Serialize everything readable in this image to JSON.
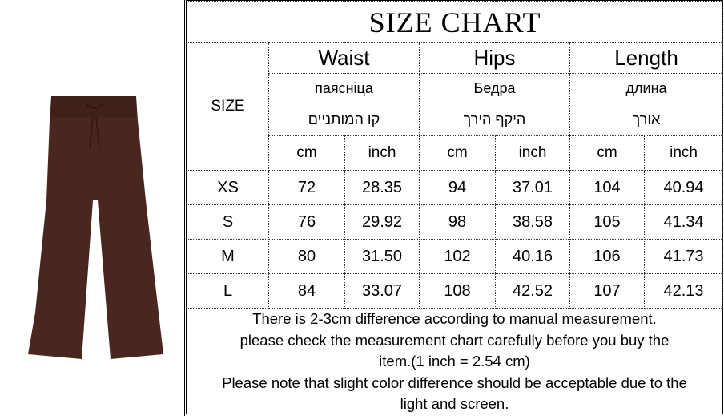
{
  "title": "SIZE CHART",
  "size_label": "SIZE",
  "measures": [
    {
      "name": "Waist",
      "belarusian": "паясніца",
      "hebrew": "קו המותניים"
    },
    {
      "name": "Hips",
      "belarusian": "Бедра",
      "hebrew": "היקף הירך"
    },
    {
      "name": "Length",
      "belarusian": "длина",
      "hebrew": "אורך"
    }
  ],
  "units": [
    "cm",
    "inch"
  ],
  "rows": [
    {
      "size": "XS",
      "values": [
        "72",
        "28.35",
        "94",
        "37.01",
        "104",
        "40.94"
      ]
    },
    {
      "size": "S",
      "values": [
        "76",
        "29.92",
        "98",
        "38.58",
        "105",
        "41.34"
      ]
    },
    {
      "size": "M",
      "values": [
        "80",
        "31.50",
        "102",
        "40.16",
        "106",
        "41.73"
      ]
    },
    {
      "size": "L",
      "values": [
        "84",
        "33.07",
        "108",
        "42.52",
        "107",
        "42.13"
      ]
    }
  ],
  "notes": [
    "There is 2-3cm difference according to manual measurement.",
    "please check the measurement chart carefully before you buy the",
    "item.(1 inch = 2.54 cm)",
    "Please note that slight color difference should be acceptable due to the",
    "light and screen."
  ],
  "colors": {
    "product": "#4a2620"
  }
}
